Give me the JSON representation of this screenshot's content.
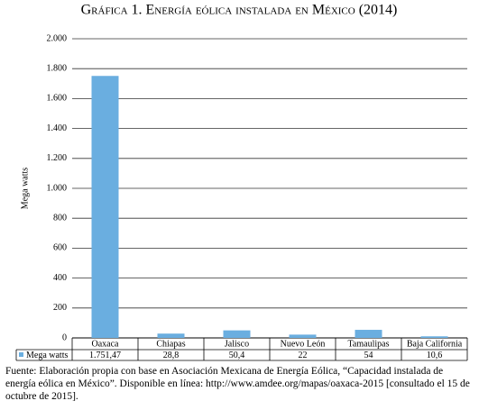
{
  "chart_data": {
    "type": "bar",
    "title": "Gráfica 1. Energía eólica instalada en México (2014)",
    "y_label": "Mega watts",
    "categories": [
      "Oaxaca",
      "Chiapas",
      "Jalisco",
      "Nuevo León",
      "Tamaulipas",
      "Baja California"
    ],
    "series": [
      {
        "name": "Mega watts",
        "color": "#6aaee0",
        "values": [
          1751.47,
          28.8,
          50.4,
          22,
          54,
          10.6
        ],
        "value_labels": [
          "1.751,47",
          "28,8",
          "50,4",
          "22",
          "54",
          "10,6"
        ]
      }
    ],
    "ylim": [
      0,
      2000
    ],
    "yticks": [
      0,
      200,
      400,
      600,
      800,
      {
        "value": 1000,
        "label": "1.000"
      },
      {
        "value": 1200,
        "label": "1.200"
      },
      {
        "value": 1400,
        "label": "1.400"
      },
      {
        "value": 1600,
        "label": "1.600"
      },
      {
        "value": 1800,
        "label": "1.800"
      },
      {
        "value": 2000,
        "label": "2.000"
      }
    ],
    "grid": true,
    "source": "Fuente: Elaboración propia con base en Asociación Mexicana de Energía Eólica, “Capacidad instalada de energía eólica en México”. Disponible en línea: http://www.amdee.org/mapas/oaxaca-2015 [consultado el 15 de octubre de 2015]."
  }
}
